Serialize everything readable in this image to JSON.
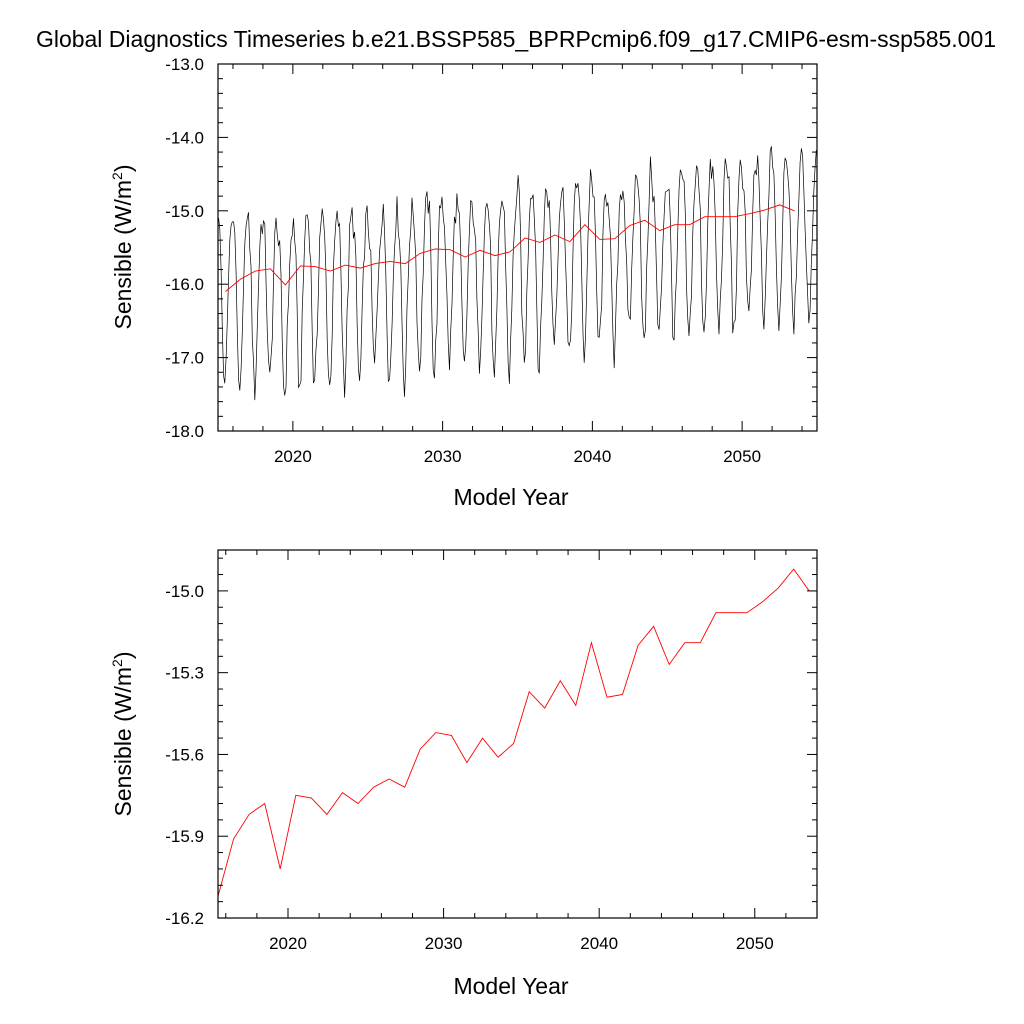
{
  "title": "Global Diagnostics Timeseries b.e21.BSSP585_BPRPcmip6.f09_g17.CMIP6-esm-ssp585.001",
  "chart_data": [
    {
      "type": "line",
      "xlabel": "Model Year",
      "ylabel_main": "Sensible (W/m",
      "ylabel_sup": "2",
      "ylabel_end": ")",
      "xlim": [
        2015,
        2055
      ],
      "ylim": [
        -18.0,
        -13.0
      ],
      "xticks": [
        2020,
        2030,
        2040,
        2050
      ],
      "xtick_labels": [
        "2020",
        "2030",
        "2040",
        "2050"
      ],
      "yticks": [
        -18.0,
        -17.0,
        -16.0,
        -15.0,
        -14.0,
        -13.0
      ],
      "ytick_labels": [
        "-18.0",
        "-17.0",
        "-16.0",
        "-15.0",
        "-14.0",
        "-13.0"
      ],
      "series": [
        {
          "color": "#000000",
          "style": "monthly",
          "x_start": 2015.04,
          "x_step": 0.08333,
          "months": [
            -15.1,
            -15.25,
            -15.8,
            -16.6,
            -17.25,
            -17.35,
            -17.0,
            -16.5,
            -15.9,
            -15.4,
            -15.2,
            -15.15,
            -15.15,
            -15.3,
            -15.85,
            -16.65,
            -17.3,
            -17.45,
            -17.15,
            -16.65,
            -16.0,
            -15.45,
            -15.2,
            -15.1
          ],
          "seasonal": [
            0.58,
            0.4,
            -0.05,
            -0.75,
            -1.35,
            -1.55,
            -1.25,
            -0.75,
            -0.15,
            0.35,
            0.58,
            0.65
          ],
          "annual_means": [
            -16.1,
            -15.93,
            -15.82,
            -15.79,
            -16.01,
            -15.75,
            -15.76,
            -15.82,
            -15.74,
            -15.78,
            -15.72,
            -15.69,
            -15.72,
            -15.58,
            -15.52,
            -15.53,
            -15.63,
            -15.54,
            -15.61,
            -15.56,
            -15.37,
            -15.43,
            -15.33,
            -15.42,
            -15.19,
            -15.39,
            -15.38,
            -15.2,
            -15.13,
            -15.27,
            -15.19,
            -15.19,
            -15.08,
            -15.08,
            -15.08,
            -15.04,
            -14.99,
            -14.92,
            -15.0,
            -15.0
          ]
        },
        {
          "color": "#ff0000",
          "style": "annual",
          "x": [
            2015.5,
            2016.5,
            2017.5,
            2018.5,
            2019.5,
            2020.5,
            2021.5,
            2022.5,
            2023.5,
            2024.5,
            2025.5,
            2026.5,
            2027.5,
            2028.5,
            2029.5,
            2030.5,
            2031.5,
            2032.5,
            2033.5,
            2034.5,
            2035.5,
            2036.5,
            2037.5,
            2038.5,
            2039.5,
            2040.5,
            2041.5,
            2042.5,
            2043.5,
            2044.5,
            2045.5,
            2046.5,
            2047.5,
            2048.5,
            2049.5,
            2050.5,
            2051.5,
            2052.5,
            2053.5
          ],
          "y": [
            -16.1,
            -15.93,
            -15.82,
            -15.79,
            -16.01,
            -15.75,
            -15.76,
            -15.82,
            -15.74,
            -15.78,
            -15.72,
            -15.69,
            -15.72,
            -15.58,
            -15.52,
            -15.53,
            -15.63,
            -15.54,
            -15.61,
            -15.56,
            -15.37,
            -15.43,
            -15.33,
            -15.42,
            -15.19,
            -15.39,
            -15.38,
            -15.2,
            -15.13,
            -15.27,
            -15.19,
            -15.19,
            -15.08,
            -15.08,
            -15.08,
            -15.04,
            -14.99,
            -14.92,
            -15.0
          ]
        }
      ]
    },
    {
      "type": "line",
      "xlabel": "Model Year",
      "ylabel_main": "Sensible (W/m",
      "ylabel_sup": "2",
      "ylabel_end": ")",
      "xlim": [
        2015.5,
        2054.0
      ],
      "ylim": [
        -16.2,
        -14.85
      ],
      "xticks": [
        2020,
        2030,
        2040,
        2050
      ],
      "xtick_labels": [
        "2020",
        "2030",
        "2040",
        "2050"
      ],
      "yticks": [
        -16.2,
        -15.9,
        -15.6,
        -15.3,
        -15.0
      ],
      "ytick_labels": [
        "-16.2",
        "-15.9",
        "-15.6",
        "-15.3",
        "-15.0"
      ],
      "series": [
        {
          "color": "#ff0000",
          "style": "annual",
          "x": [
            2015.5,
            2016.5,
            2017.5,
            2018.5,
            2019.5,
            2020.5,
            2021.5,
            2022.5,
            2023.5,
            2024.5,
            2025.5,
            2026.5,
            2027.5,
            2028.5,
            2029.5,
            2030.5,
            2031.5,
            2032.5,
            2033.5,
            2034.5,
            2035.5,
            2036.5,
            2037.5,
            2038.5,
            2039.5,
            2040.5,
            2041.5,
            2042.5,
            2043.5,
            2044.5,
            2045.5,
            2046.5,
            2047.5,
            2048.5,
            2049.5,
            2050.5,
            2051.5,
            2052.5,
            2053.5,
            2054.0
          ],
          "y": [
            -16.12,
            -15.91,
            -15.82,
            -15.78,
            -16.02,
            -15.75,
            -15.76,
            -15.82,
            -15.74,
            -15.78,
            -15.72,
            -15.69,
            -15.72,
            -15.58,
            -15.52,
            -15.53,
            -15.63,
            -15.54,
            -15.61,
            -15.56,
            -15.37,
            -15.43,
            -15.33,
            -15.42,
            -15.19,
            -15.39,
            -15.38,
            -15.2,
            -15.13,
            -15.27,
            -15.19,
            -15.19,
            -15.08,
            -15.08,
            -15.08,
            -15.04,
            -14.99,
            -14.92,
            -15.0,
            -15.0
          ]
        }
      ]
    }
  ]
}
